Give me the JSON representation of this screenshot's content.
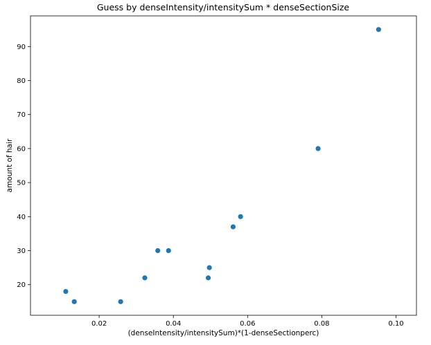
{
  "chart_data": {
    "type": "scatter",
    "title": "Guess by denseIntensity/intensitySum * denseSectionSize",
    "xlabel": "(denseIntensity/intensitySum)*(1-denseSectionperc)",
    "ylabel": "amount of hair",
    "xlim": [
      0.0015,
      0.1055
    ],
    "ylim": [
      11,
      99
    ],
    "xticks": [
      0.02,
      0.04,
      0.06,
      0.08,
      0.1
    ],
    "xtick_labels": [
      "0.02",
      "0.04",
      "0.06",
      "0.08",
      "0.10"
    ],
    "yticks": [
      20,
      30,
      40,
      50,
      60,
      70,
      80,
      90
    ],
    "ytick_labels": [
      "20",
      "30",
      "40",
      "50",
      "60",
      "70",
      "80",
      "90"
    ],
    "grid": false,
    "marker_color": "#1f77b4",
    "series": [
      {
        "x": [
          0.011,
          0.0133,
          0.0258,
          0.0323,
          0.0358,
          0.0387,
          0.0494,
          0.0497,
          0.0561,
          0.0581,
          0.079,
          0.0953
        ],
        "y": [
          18,
          15,
          15,
          22,
          30,
          30,
          22,
          25,
          37,
          40,
          60,
          95
        ]
      }
    ]
  }
}
